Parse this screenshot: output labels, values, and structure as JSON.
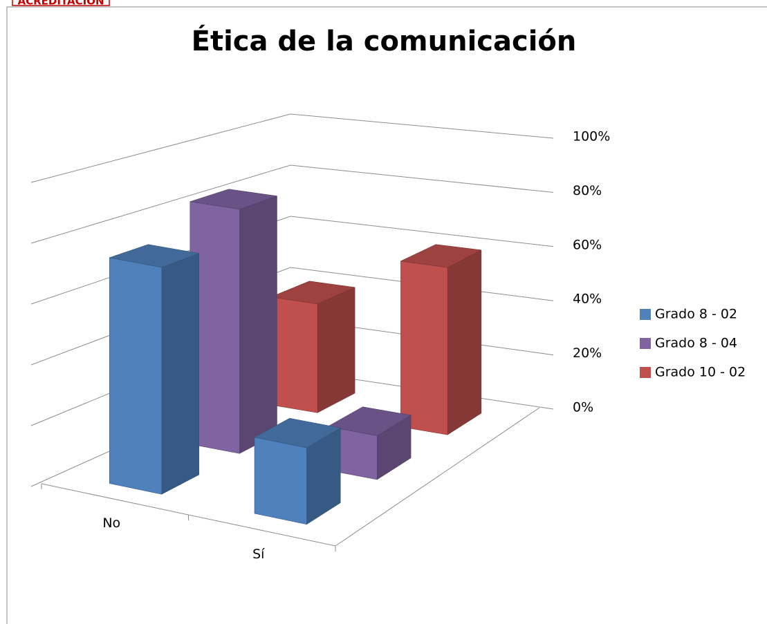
{
  "header": {
    "badge": "ACREDITACIÓN"
  },
  "chart_data": {
    "type": "bar3d",
    "title": "Ética de la comunicación",
    "categories": [
      "No",
      "Sí"
    ],
    "series": [
      {
        "name": "Grado 8 - 02",
        "color": "#4f81bd",
        "values": [
          75,
          25
        ]
      },
      {
        "name": "Grado 8 - 04",
        "color": "#8064a2",
        "values": [
          85,
          15
        ]
      },
      {
        "name": "Grado 10 - 02",
        "color": "#c0504d",
        "values": [
          40,
          60
        ]
      }
    ],
    "ylim": [
      0,
      100
    ],
    "yticks": [
      {
        "value": 0,
        "label": "0%"
      },
      {
        "value": 20,
        "label": "20%"
      },
      {
        "value": 40,
        "label": "40%"
      },
      {
        "value": 60,
        "label": "60%"
      },
      {
        "value": 80,
        "label": "80%"
      },
      {
        "value": 100,
        "label": "100%"
      }
    ],
    "grid": true,
    "legend": "right"
  }
}
